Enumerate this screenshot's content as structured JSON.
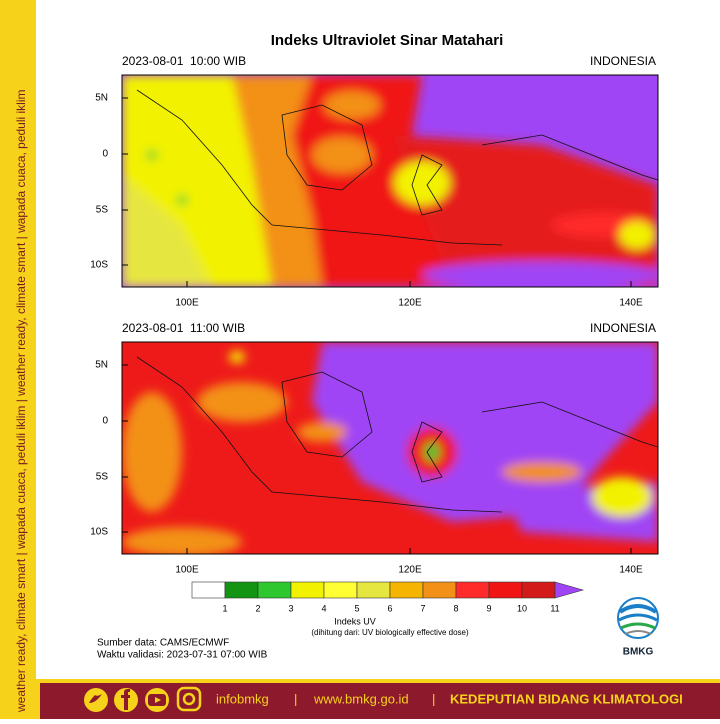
{
  "title": "Indeks Ultraviolet Sinar Matahari",
  "sidebar": "weather ready, climate smart | wapada cuaca, peduli iklim | weather ready, climate smart | wapada cuaca, peduli iklim",
  "maps": [
    {
      "datetime": "2023-08-01  10:00 WIB",
      "region": "INDONESIA",
      "lat_labels": [
        "5N",
        "0",
        "5S",
        "10S"
      ],
      "lon_labels": [
        "100E",
        "120E",
        "140E"
      ]
    },
    {
      "datetime": "2023-08-01  11:00 WIB",
      "region": "INDONESIA",
      "lat_labels": [
        "5N",
        "0",
        "5S",
        "10S"
      ],
      "lon_labels": [
        "100E",
        "120E",
        "140E"
      ]
    }
  ],
  "colorbar": {
    "ticks": [
      1,
      2,
      3,
      4,
      5,
      6,
      7,
      8,
      9,
      10,
      11
    ],
    "colors": [
      "#ffffff",
      "#139413",
      "#2ec82e",
      "#f2f200",
      "#ffff33",
      "#e6e640",
      "#f5b400",
      "#f39018",
      "#ff2a2a",
      "#f01414",
      "#d21a1a",
      "#a045f5"
    ],
    "label": "Indeks UV",
    "note": "(dihitung dari: UV biologically effective dose)"
  },
  "source": "Sumber data: CAMS/ECMWF",
  "validity": "Waktu validasi: 2023-07-31 07:00 WIB",
  "logo": "BMKG",
  "footer": {
    "handle": "infobmkg",
    "separator": "|",
    "website": "www.bmkg.go.id",
    "department": "KEDEPUTIAN BIDANG KLIMATOLOGI"
  }
}
